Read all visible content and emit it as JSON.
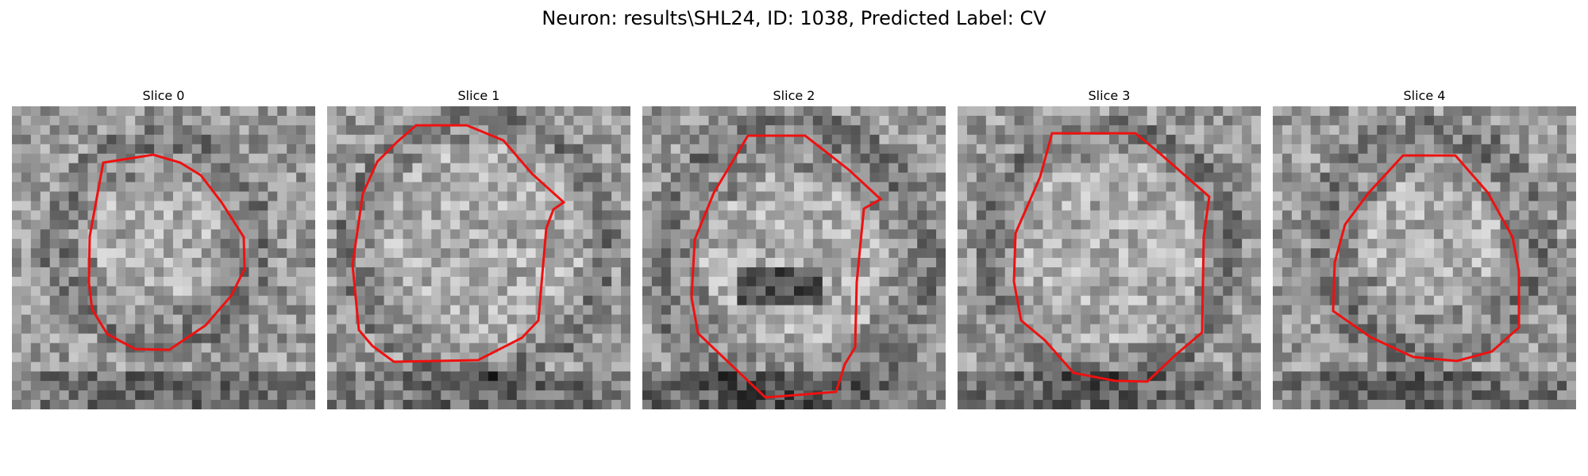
{
  "figure": {
    "title": "Neuron: results\\SHL24, ID: 1038, Predicted Label: CV"
  },
  "colors": {
    "contour": "#ee1111",
    "background": "#ffffff"
  },
  "panels": [
    {
      "title": "Slice 0"
    },
    {
      "title": "Slice 1"
    },
    {
      "title": "Slice 2"
    },
    {
      "title": "Slice 3"
    },
    {
      "title": "Slice 4"
    }
  ]
}
